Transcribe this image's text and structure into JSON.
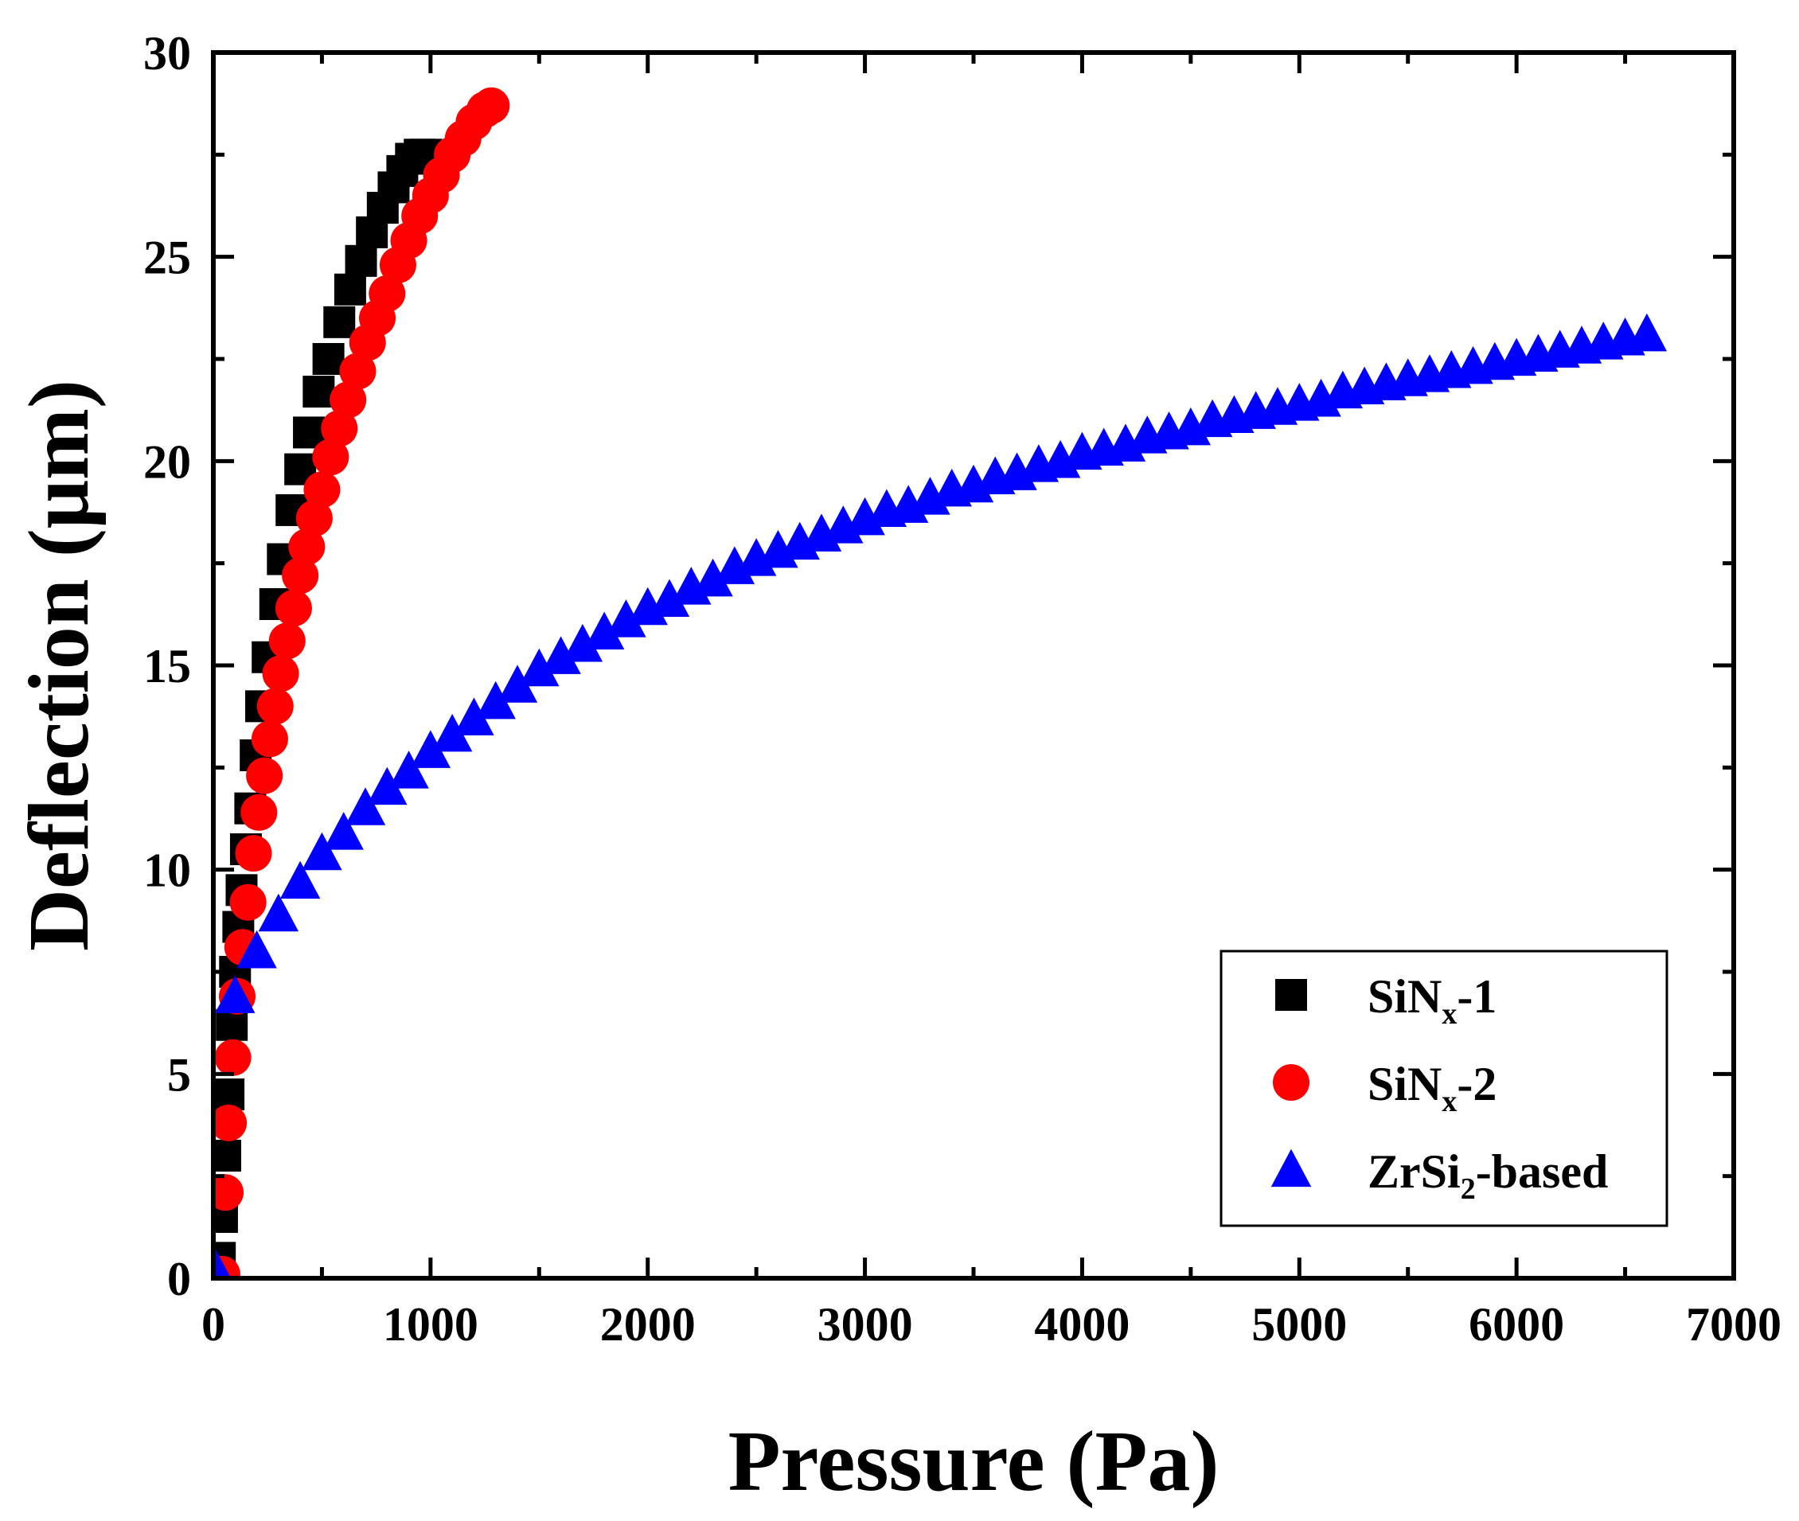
{
  "chart_data": {
    "type": "scatter",
    "xlabel": "Pressure (Pa)",
    "ylabel": "Deflection (μm)",
    "xlim": [
      0,
      7000
    ],
    "ylim": [
      0,
      30
    ],
    "xticks": [
      0,
      1000,
      2000,
      3000,
      4000,
      5000,
      6000,
      7000
    ],
    "yticks": [
      0,
      5,
      10,
      15,
      20,
      25,
      30
    ],
    "xtick_labels": [
      "0",
      "1000",
      "2000",
      "3000",
      "4000",
      "5000",
      "6000",
      "7000"
    ],
    "ytick_labels": [
      "0",
      "5",
      "10",
      "15",
      "20",
      "25",
      "30"
    ],
    "grid": false,
    "legend_position": "bottom-right",
    "series": [
      {
        "name": "SiNx-1",
        "label_main": "SiN",
        "label_sub": "x",
        "label_suffix": "-1",
        "marker": "square",
        "color": "#000000",
        "x": [
          30,
          40,
          55,
          70,
          85,
          100,
          115,
          130,
          150,
          170,
          195,
          220,
          250,
          285,
          320,
          360,
          400,
          440,
          485,
          530,
          580,
          630,
          680,
          730,
          780,
          830,
          870,
          910,
          950,
          980
        ],
        "y": [
          0.5,
          1.5,
          3.0,
          4.5,
          6.2,
          7.5,
          8.6,
          9.5,
          10.5,
          11.5,
          12.8,
          14.0,
          15.2,
          16.5,
          17.6,
          18.8,
          19.8,
          20.7,
          21.7,
          22.5,
          23.4,
          24.2,
          24.9,
          25.6,
          26.2,
          26.7,
          27.1,
          27.4,
          27.5,
          27.5
        ]
      },
      {
        "name": "SiNx-2",
        "label_main": "SiN",
        "label_sub": "x",
        "label_suffix": "-2",
        "marker": "circle",
        "color": "#ff0000",
        "x": [
          40,
          55,
          70,
          90,
          110,
          135,
          160,
          185,
          210,
          235,
          260,
          285,
          310,
          340,
          370,
          400,
          430,
          465,
          500,
          540,
          580,
          620,
          665,
          710,
          755,
          800,
          850,
          900,
          950,
          1000,
          1050,
          1100,
          1150,
          1200,
          1250,
          1280
        ],
        "y": [
          0.1,
          2.1,
          3.8,
          5.4,
          6.9,
          8.1,
          9.2,
          10.4,
          11.4,
          12.3,
          13.2,
          14.0,
          14.8,
          15.6,
          16.4,
          17.2,
          17.9,
          18.6,
          19.3,
          20.1,
          20.8,
          21.5,
          22.2,
          22.9,
          23.5,
          24.1,
          24.8,
          25.4,
          26.0,
          26.5,
          27.0,
          27.5,
          27.9,
          28.3,
          28.6,
          28.7
        ]
      },
      {
        "name": "ZrSi2-based",
        "label_main": "ZrSi",
        "label_sub": "2",
        "label_suffix": "-based",
        "marker": "triangle",
        "color": "#0000ff",
        "x": [
          10,
          100,
          200,
          300,
          400,
          500,
          600,
          700,
          800,
          900,
          1000,
          1100,
          1200,
          1300,
          1400,
          1500,
          1600,
          1700,
          1800,
          1900,
          2000,
          2100,
          2200,
          2300,
          2400,
          2500,
          2600,
          2700,
          2800,
          2900,
          3000,
          3100,
          3200,
          3300,
          3400,
          3500,
          3600,
          3700,
          3800,
          3900,
          4000,
          4100,
          4200,
          4300,
          4400,
          4500,
          4600,
          4700,
          4800,
          4900,
          5000,
          5100,
          5200,
          5300,
          5400,
          5500,
          5600,
          5700,
          5800,
          5900,
          6000,
          6100,
          6200,
          6300,
          6400,
          6500,
          6600
        ],
        "y": [
          0.2,
          6.9,
          8.0,
          8.9,
          9.7,
          10.4,
          10.9,
          11.5,
          12.0,
          12.4,
          12.9,
          13.3,
          13.7,
          14.1,
          14.5,
          14.9,
          15.2,
          15.5,
          15.8,
          16.1,
          16.4,
          16.6,
          16.9,
          17.1,
          17.4,
          17.6,
          17.8,
          18.0,
          18.2,
          18.4,
          18.6,
          18.8,
          18.9,
          19.1,
          19.3,
          19.4,
          19.6,
          19.7,
          19.9,
          20.0,
          20.2,
          20.3,
          20.4,
          20.6,
          20.7,
          20.8,
          21.0,
          21.1,
          21.2,
          21.3,
          21.4,
          21.5,
          21.7,
          21.8,
          21.9,
          22.0,
          22.1,
          22.2,
          22.3,
          22.4,
          22.5,
          22.6,
          22.7,
          22.8,
          22.9,
          23.0,
          23.1
        ]
      }
    ]
  }
}
